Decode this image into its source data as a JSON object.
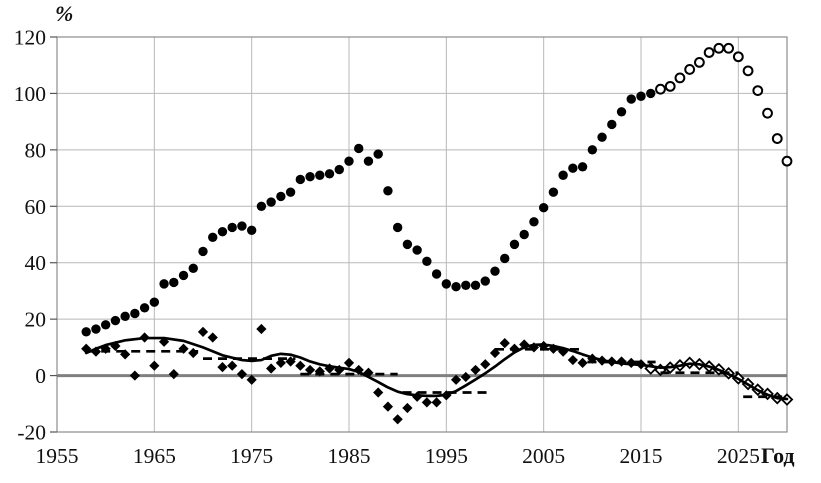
{
  "figure": {
    "ylabel": "%",
    "xlabel": "Год",
    "background": "#ffffff"
  },
  "chart_data": {
    "type": "scatter",
    "title": "",
    "xlabel": "Год",
    "ylabel": "%",
    "xlim": [
      1955,
      2030
    ],
    "ylim": [
      -20,
      120
    ],
    "x_ticks": [
      1955,
      1965,
      1975,
      1985,
      1995,
      2005,
      2015,
      2025
    ],
    "y_ticks": [
      -20,
      0,
      20,
      40,
      60,
      80,
      100,
      120
    ],
    "grid": true,
    "legend": "none",
    "colors": {
      "marker": "#000000",
      "line": "#000000",
      "dashed": "#000000",
      "zero_line": "#808080",
      "gridline": "#b8b8b8",
      "frame": "#8c8c8c",
      "tick_text": "#111111"
    },
    "series": [
      {
        "name": "filled-circles-actual",
        "marker": "circle-filled",
        "points": [
          [
            1958,
            15.5
          ],
          [
            1959,
            16.5
          ],
          [
            1960,
            18
          ],
          [
            1961,
            19.5
          ],
          [
            1962,
            21
          ],
          [
            1963,
            22
          ],
          [
            1964,
            24
          ],
          [
            1965,
            26
          ],
          [
            1966,
            32.5
          ],
          [
            1967,
            33
          ],
          [
            1968,
            35.5
          ],
          [
            1969,
            38
          ],
          [
            1970,
            44
          ],
          [
            1971,
            49
          ],
          [
            1972,
            51
          ],
          [
            1973,
            52.5
          ],
          [
            1974,
            53
          ],
          [
            1975,
            51.5
          ],
          [
            1976,
            60
          ],
          [
            1977,
            61.5
          ],
          [
            1978,
            63.5
          ],
          [
            1979,
            65
          ],
          [
            1980,
            69.5
          ],
          [
            1981,
            70.5
          ],
          [
            1982,
            71
          ],
          [
            1983,
            71.5
          ],
          [
            1984,
            73
          ],
          [
            1985,
            76
          ],
          [
            1986,
            80.5
          ],
          [
            1987,
            76
          ],
          [
            1988,
            78.5
          ],
          [
            1989,
            65.5
          ],
          [
            1990,
            52.5
          ],
          [
            1991,
            46.5
          ],
          [
            1992,
            44.5
          ],
          [
            1993,
            40.5
          ],
          [
            1994,
            36
          ],
          [
            1995,
            32.5
          ],
          [
            1996,
            31.5
          ],
          [
            1997,
            32
          ],
          [
            1998,
            32
          ],
          [
            1999,
            33.5
          ],
          [
            2000,
            37
          ],
          [
            2001,
            41.5
          ],
          [
            2002,
            46.5
          ],
          [
            2003,
            50
          ],
          [
            2004,
            54.5
          ],
          [
            2005,
            59.5
          ],
          [
            2006,
            65
          ],
          [
            2007,
            71
          ],
          [
            2008,
            73.5
          ],
          [
            2009,
            74
          ],
          [
            2010,
            80
          ],
          [
            2011,
            84.5
          ],
          [
            2012,
            89
          ],
          [
            2013,
            93.5
          ],
          [
            2014,
            98
          ],
          [
            2015,
            99
          ],
          [
            2016,
            100
          ]
        ]
      },
      {
        "name": "open-circles-forecast",
        "marker": "circle-open",
        "points": [
          [
            2017,
            101.5
          ],
          [
            2018,
            102.5
          ],
          [
            2019,
            105.5
          ],
          [
            2020,
            108.5
          ],
          [
            2021,
            111
          ],
          [
            2022,
            114.5
          ],
          [
            2023,
            116
          ],
          [
            2024,
            116
          ],
          [
            2025,
            113
          ],
          [
            2026,
            108
          ],
          [
            2027,
            101
          ],
          [
            2028,
            93
          ],
          [
            2029,
            84
          ],
          [
            2030,
            76
          ]
        ]
      },
      {
        "name": "filled-diamonds-actual",
        "marker": "diamond-filled",
        "points": [
          [
            1958,
            9.5
          ],
          [
            1959,
            8.5
          ],
          [
            1960,
            9.5
          ],
          [
            1961,
            10.5
          ],
          [
            1962,
            7.5
          ],
          [
            1963,
            0
          ],
          [
            1964,
            13.5
          ],
          [
            1965,
            3.5
          ],
          [
            1966,
            12
          ],
          [
            1967,
            0.5
          ],
          [
            1968,
            9.5
          ],
          [
            1969,
            8
          ],
          [
            1970,
            15.5
          ],
          [
            1971,
            13.5
          ],
          [
            1972,
            3
          ],
          [
            1973,
            3.5
          ],
          [
            1974,
            0.5
          ],
          [
            1975,
            -1.5
          ],
          [
            1976,
            16.5
          ],
          [
            1977,
            2.5
          ],
          [
            1978,
            4.5
          ],
          [
            1979,
            5
          ],
          [
            1980,
            3.5
          ],
          [
            1981,
            2
          ],
          [
            1982,
            1.5
          ],
          [
            1983,
            2.5
          ],
          [
            1984,
            2
          ],
          [
            1985,
            4.5
          ],
          [
            1986,
            2
          ],
          [
            1987,
            1
          ],
          [
            1988,
            -6
          ],
          [
            1989,
            -11
          ],
          [
            1990,
            -15.5
          ],
          [
            1991,
            -11.5
          ],
          [
            1992,
            -7.5
          ],
          [
            1993,
            -9.5
          ],
          [
            1994,
            -9.5
          ],
          [
            1995,
            -7
          ],
          [
            1996,
            -1.5
          ],
          [
            1997,
            -0.5
          ],
          [
            1998,
            2
          ],
          [
            1999,
            4
          ],
          [
            2000,
            8
          ],
          [
            2001,
            11.5
          ],
          [
            2002,
            9.5
          ],
          [
            2003,
            11
          ],
          [
            2004,
            10
          ],
          [
            2005,
            10.5
          ],
          [
            2006,
            9.5
          ],
          [
            2007,
            8.5
          ],
          [
            2008,
            5.5
          ],
          [
            2009,
            4.5
          ],
          [
            2010,
            6
          ],
          [
            2011,
            5.3
          ],
          [
            2012,
            5
          ],
          [
            2013,
            5
          ],
          [
            2014,
            4.5
          ],
          [
            2015,
            4
          ]
        ]
      },
      {
        "name": "open-diamonds-forecast",
        "marker": "diamond-open",
        "points": [
          [
            2016,
            2.5
          ],
          [
            2017,
            2
          ],
          [
            2018,
            2.8
          ],
          [
            2019,
            3.6
          ],
          [
            2020,
            4.5
          ],
          [
            2021,
            4
          ],
          [
            2022,
            3.2
          ],
          [
            2023,
            2.2
          ],
          [
            2024,
            0.8
          ],
          [
            2025,
            -1
          ],
          [
            2026,
            -3
          ],
          [
            2027,
            -5
          ],
          [
            2028,
            -6.5
          ],
          [
            2029,
            -8
          ],
          [
            2030,
            -8.5
          ]
        ]
      },
      {
        "name": "solid-trend-line",
        "marker": "none",
        "style": "solid-line",
        "points": [
          [
            1958,
            8
          ],
          [
            1959,
            9.5
          ],
          [
            1960,
            10.8
          ],
          [
            1962,
            12.5
          ],
          [
            1964,
            13.3
          ],
          [
            1966,
            13.3
          ],
          [
            1968,
            12.3
          ],
          [
            1970,
            10
          ],
          [
            1972,
            7.2
          ],
          [
            1974,
            5.5
          ],
          [
            1975,
            5.2
          ],
          [
            1976,
            5.5
          ],
          [
            1977,
            7
          ],
          [
            1978,
            7.7
          ],
          [
            1979,
            7.4
          ],
          [
            1980,
            6.4
          ],
          [
            1981,
            5
          ],
          [
            1982,
            4
          ],
          [
            1983,
            3.3
          ],
          [
            1984,
            2.8
          ],
          [
            1985,
            2.3
          ],
          [
            1986,
            1.3
          ],
          [
            1987,
            -0.5
          ],
          [
            1988,
            -2.3
          ],
          [
            1989,
            -4.2
          ],
          [
            1990,
            -5.7
          ],
          [
            1991,
            -6.6
          ],
          [
            1992,
            -7
          ],
          [
            1993,
            -7.2
          ],
          [
            1994,
            -7.2
          ],
          [
            1995,
            -6.8
          ],
          [
            1996,
            -5.5
          ],
          [
            1997,
            -3.5
          ],
          [
            1998,
            -1.4
          ],
          [
            1999,
            0.8
          ],
          [
            2000,
            3.2
          ],
          [
            2001,
            5.8
          ],
          [
            2002,
            8.2
          ],
          [
            2003,
            10
          ],
          [
            2004,
            10.9
          ],
          [
            2005,
            11
          ],
          [
            2006,
            10.5
          ],
          [
            2007,
            9.7
          ],
          [
            2008,
            8.7
          ],
          [
            2009,
            7.5
          ],
          [
            2010,
            6.4
          ],
          [
            2011,
            5.5
          ],
          [
            2012,
            4.8
          ],
          [
            2013,
            4.3
          ],
          [
            2014,
            4
          ],
          [
            2015,
            3.8
          ],
          [
            2016,
            3.3
          ],
          [
            2017,
            2.8
          ],
          [
            2018,
            3
          ],
          [
            2019,
            3.5
          ],
          [
            2020,
            4.2
          ],
          [
            2021,
            4
          ],
          [
            2022,
            3.2
          ],
          [
            2023,
            2
          ],
          [
            2024,
            0.5
          ],
          [
            2025,
            -1.2
          ],
          [
            2026,
            -3.2
          ],
          [
            2027,
            -5.2
          ],
          [
            2028,
            -6.8
          ],
          [
            2029,
            -8
          ],
          [
            2030,
            -8.3
          ]
        ]
      },
      {
        "name": "dashed-period-mean-segments",
        "marker": "none",
        "style": "dashed-line",
        "segments": [
          {
            "x1": 1958,
            "x2": 1969.5,
            "y": 8.6
          },
          {
            "x1": 1970,
            "x2": 1979.5,
            "y": 6
          },
          {
            "x1": 1980,
            "x2": 1990,
            "y": 0.5
          },
          {
            "x1": 1990.5,
            "x2": 1999.5,
            "y": -6
          },
          {
            "x1": 2000,
            "x2": 2009,
            "y": 9.3
          },
          {
            "x1": 2009.5,
            "x2": 2016.5,
            "y": 4.8
          },
          {
            "x1": 2017,
            "x2": 2025,
            "y": 1
          },
          {
            "x1": 2025.5,
            "x2": 2030,
            "y": -7.5
          }
        ]
      }
    ]
  }
}
